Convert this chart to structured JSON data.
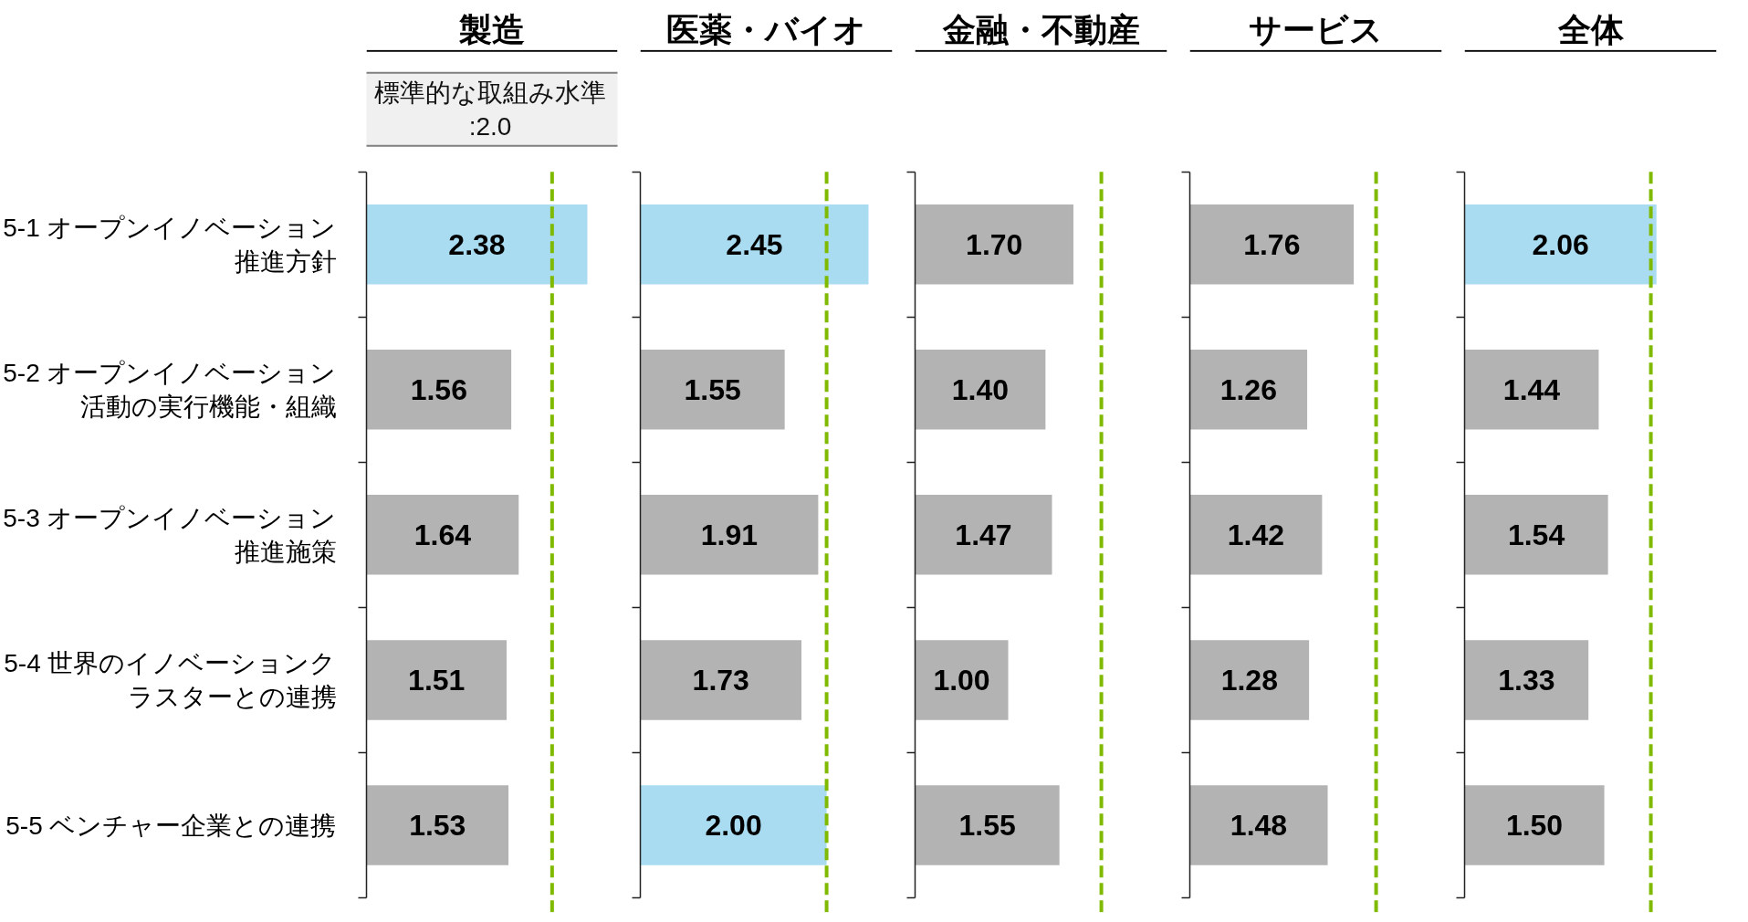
{
  "chart_data": [
    {
      "type": "bar",
      "orientation": "horizontal",
      "title": "製造",
      "categories": [
        "5-1 オープンイノベーション推進方針",
        "5-2 オープンイノベーション活動の実行機能・組織",
        "5-3 オープンイノベーション推進施策",
        "5-4 世界のイノベーションクラスターとの連携",
        "5-5 ベンチャー企業との連携"
      ],
      "values": [
        2.38,
        1.56,
        1.64,
        1.51,
        1.53
      ],
      "colors": [
        "#a9dcf1",
        "#b3b3b3",
        "#b3b3b3",
        "#b3b3b3",
        "#b3b3b3"
      ],
      "value_labels": [
        "2.38",
        "1.56",
        "1.64",
        "1.51",
        "1.53"
      ],
      "ref_lines": [
        {
          "axis": "x",
          "value": 2.0,
          "label": "標準的な取組み水準\n:2.0",
          "color": "#7fba00",
          "line_style": "dashed"
        }
      ],
      "tick_labels": "y"
    },
    {
      "type": "bar",
      "orientation": "horizontal",
      "title": "医薬・バイオ",
      "categories": [
        "5-1 オープンイノベーション推進方針",
        "5-2 オープンイノベーション活動の実行機能・組織",
        "5-3 オープンイノベーション推進施策",
        "5-4 世界のイノベーションクラスターとの連携",
        "5-5 ベンチャー企業との連携"
      ],
      "values": [
        2.45,
        1.55,
        1.91,
        1.73,
        2.0
      ],
      "colors": [
        "#a9dcf1",
        "#b3b3b3",
        "#b3b3b3",
        "#b3b3b3",
        "#a9dcf1"
      ],
      "value_labels": [
        "2.45",
        "1.55",
        "1.91",
        "1.73",
        "2.00"
      ],
      "ref_lines": [
        {
          "axis": "x",
          "value": 2.0,
          "color": "#7fba00",
          "line_style": "dashed"
        }
      ],
      "tick_labels": false
    },
    {
      "type": "bar",
      "orientation": "horizontal",
      "title": "金融・不動産",
      "categories": [
        "5-1 オープンイノベーション推進方針",
        "5-2 オープンイノベーション活動の実行機能・組織",
        "5-3 オープンイノベーション推進施策",
        "5-4 世界のイノベーションクラスターとの連携",
        "5-5 ベンチャー企業との連携"
      ],
      "values": [
        1.7,
        1.4,
        1.47,
        1.0,
        1.55
      ],
      "colors": [
        "#b3b3b3",
        "#b3b3b3",
        "#b3b3b3",
        "#b3b3b3",
        "#b3b3b3"
      ],
      "value_labels": [
        "1.70",
        "1.40",
        "1.47",
        "1.00",
        "1.55"
      ],
      "ref_lines": [
        {
          "axis": "x",
          "value": 2.0,
          "color": "#7fba00",
          "line_style": "dashed"
        }
      ],
      "tick_labels": false
    },
    {
      "type": "bar",
      "orientation": "horizontal",
      "title": "サービス",
      "categories": [
        "5-1 オープンイノベーション推進方針",
        "5-2 オープンイノベーション活動の実行機能・組織",
        "5-3 オープンイノベーション推進施策",
        "5-4 世界のイノベーションクラスターとの連携",
        "5-5 ベンチャー企業との連携"
      ],
      "values": [
        1.76,
        1.26,
        1.42,
        1.28,
        1.48
      ],
      "colors": [
        "#b3b3b3",
        "#b3b3b3",
        "#b3b3b3",
        "#b3b3b3",
        "#b3b3b3"
      ],
      "value_labels": [
        "1.76",
        "1.26",
        "1.42",
        "1.28",
        "1.48"
      ],
      "ref_lines": [
        {
          "axis": "x",
          "value": 2.0,
          "color": "#7fba00",
          "line_style": "dashed"
        }
      ],
      "tick_labels": false
    },
    {
      "type": "bar",
      "orientation": "horizontal",
      "title": "全体",
      "categories": [
        "5-1 オープンイノベーション推進方針",
        "5-2 オープンイノベーション活動の実行機能・組織",
        "5-3 オープンイノベーション推進施策",
        "5-4 世界のイノベーションクラスターとの連携",
        "5-5 ベンチャー企業との連携"
      ],
      "values": [
        2.06,
        1.44,
        1.54,
        1.33,
        1.5
      ],
      "colors": [
        "#a9dcf1",
        "#b3b3b3",
        "#b3b3b3",
        "#b3b3b3",
        "#b3b3b3"
      ],
      "value_labels": [
        "2.06",
        "1.44",
        "1.54",
        "1.33",
        "1.50"
      ],
      "ref_lines": [
        {
          "axis": "x",
          "value": 2.0,
          "color": "#7fba00",
          "line_style": "dashed"
        }
      ],
      "tick_labels": false
    }
  ]
}
